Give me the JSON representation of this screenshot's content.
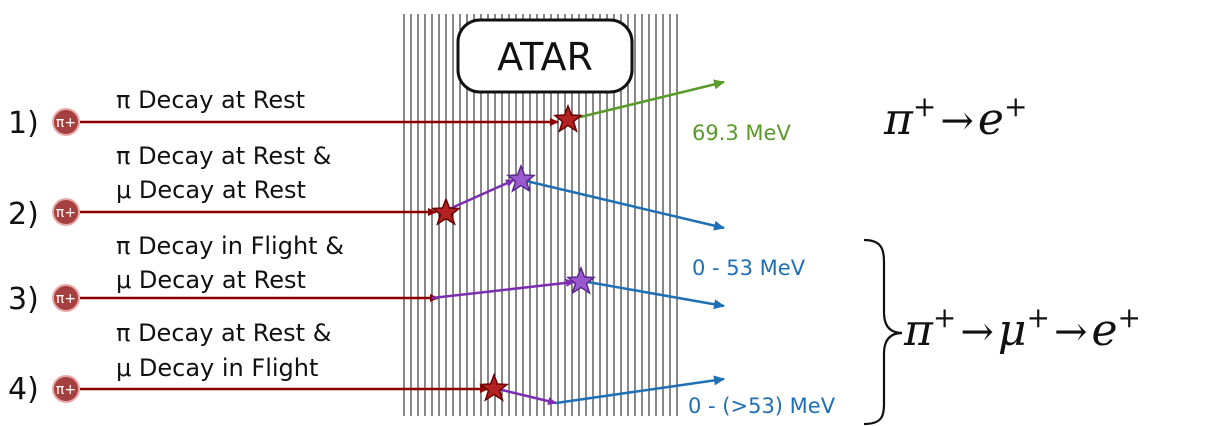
{
  "atar_label": "ATAR",
  "rows": [
    {
      "number": "1)",
      "particle": "π+",
      "labels": [
        "π Decay at Rest"
      ]
    },
    {
      "number": "2)",
      "particle": "π+",
      "labels": [
        "π Decay at Rest &",
        "μ Decay at Rest"
      ]
    },
    {
      "number": "3)",
      "particle": "π+",
      "labels": [
        "π Decay in Flight &",
        "μ Decay at Rest"
      ]
    },
    {
      "number": "4)",
      "particle": "π+",
      "labels": [
        "π Decay at Rest &",
        "μ Decay in Flight"
      ]
    }
  ],
  "energies": {
    "direct": "69.3 MeV",
    "michel": "0 - 53 MeV",
    "inflight": "0 - (>53) MeV"
  },
  "equations": {
    "direct": {
      "pi": "π",
      "pi_sup": "+",
      "arrow": "→",
      "e": "e",
      "e_sup": "+"
    },
    "chain": {
      "pi": "π",
      "pi_sup": "+",
      "arrow1": "→",
      "mu": "μ",
      "mu_sup": "+",
      "arrow2": "→",
      "e": "e",
      "e_sup": "+"
    }
  },
  "colors": {
    "pion": "#8b0000",
    "muon": "#7b2fb0",
    "positron_direct": "#5a9a2a",
    "positron": "#1f6fb5",
    "particle_fill": "#a4403f"
  }
}
